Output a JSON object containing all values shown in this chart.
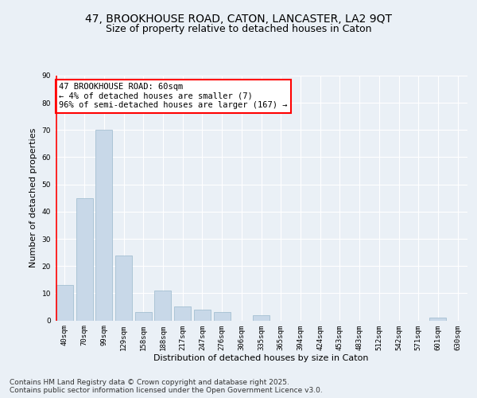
{
  "title_line1": "47, BROOKHOUSE ROAD, CATON, LANCASTER, LA2 9QT",
  "title_line2": "Size of property relative to detached houses in Caton",
  "xlabel": "Distribution of detached houses by size in Caton",
  "ylabel": "Number of detached properties",
  "categories": [
    "40sqm",
    "70sqm",
    "99sqm",
    "129sqm",
    "158sqm",
    "188sqm",
    "217sqm",
    "247sqm",
    "276sqm",
    "306sqm",
    "335sqm",
    "365sqm",
    "394sqm",
    "424sqm",
    "453sqm",
    "483sqm",
    "512sqm",
    "542sqm",
    "571sqm",
    "601sqm",
    "630sqm"
  ],
  "values": [
    13,
    45,
    70,
    24,
    3,
    11,
    5,
    4,
    3,
    0,
    2,
    0,
    0,
    0,
    0,
    0,
    0,
    0,
    0,
    1,
    0
  ],
  "bar_color": "#c8d8e8",
  "bar_edge_color": "#9ab8cc",
  "highlight_color": "red",
  "annotation_text": "47 BROOKHOUSE ROAD: 60sqm\n← 4% of detached houses are smaller (7)\n96% of semi-detached houses are larger (167) →",
  "annotation_box_color": "white",
  "annotation_box_edge_color": "red",
  "vline_x_index": 0,
  "ylim": [
    0,
    90
  ],
  "yticks": [
    0,
    10,
    20,
    30,
    40,
    50,
    60,
    70,
    80,
    90
  ],
  "footer_text": "Contains HM Land Registry data © Crown copyright and database right 2025.\nContains public sector information licensed under the Open Government Licence v3.0.",
  "background_color": "#eaf0f6",
  "plot_background_color": "#eaf0f6",
  "grid_color": "white",
  "title_fontsize": 10,
  "subtitle_fontsize": 9,
  "axis_label_fontsize": 8,
  "tick_fontsize": 6.5,
  "annotation_fontsize": 7.5,
  "footer_fontsize": 6.5
}
